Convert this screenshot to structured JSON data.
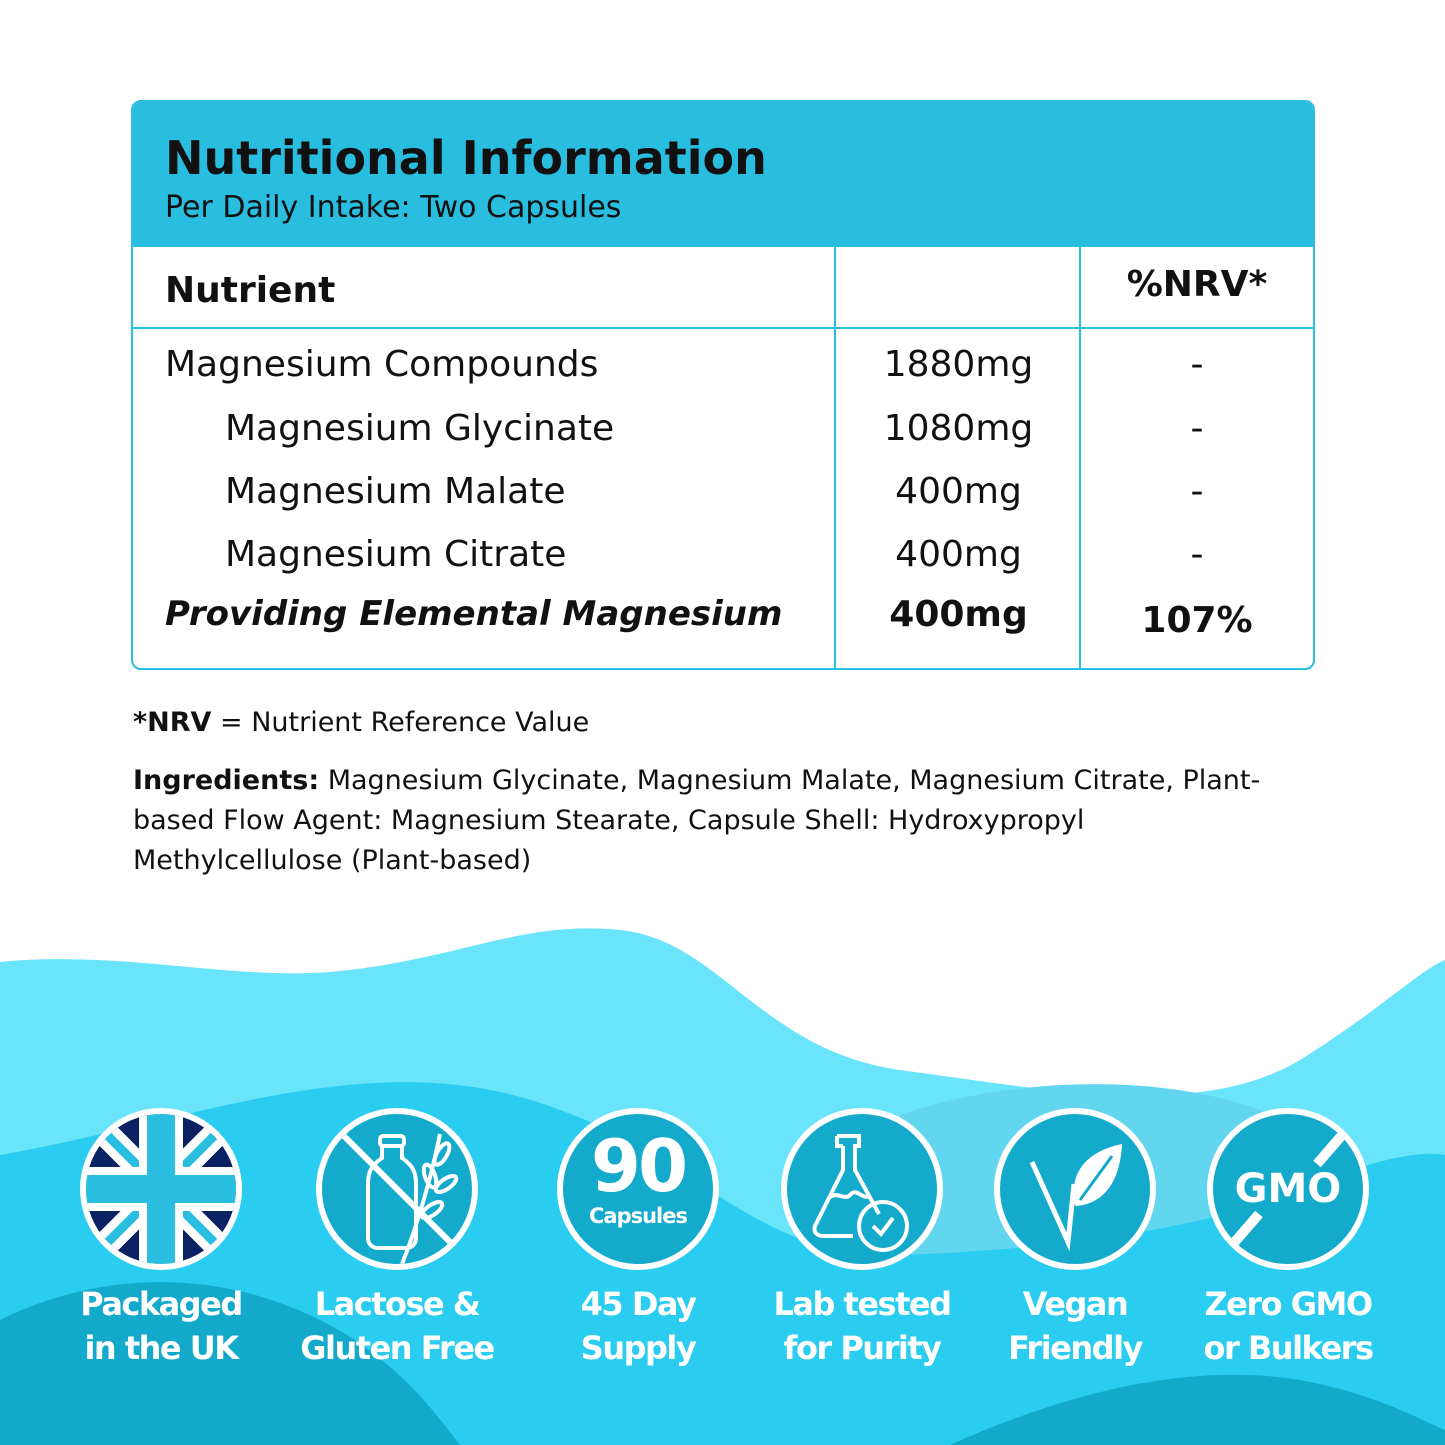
{
  "panel": {
    "title": "Nutritional Information",
    "subtitle": "Per Daily Intake: Two Capsules",
    "headers": {
      "nutrient": "Nutrient",
      "amount": "",
      "nrv": "%NRV*"
    },
    "rows": [
      {
        "name": "Magnesium Compounds",
        "amount": "1880mg",
        "nrv": "-"
      },
      {
        "name": "Magnesium Glycinate",
        "amount": "1080mg",
        "nrv": "-"
      },
      {
        "name": "Magnesium Malate",
        "amount": "400mg",
        "nrv": "-"
      },
      {
        "name": "Magnesium Citrate",
        "amount": "400mg",
        "nrv": "-"
      },
      {
        "name": "Providing Elemental Magnesium",
        "amount": "400mg",
        "nrv": "107%"
      }
    ]
  },
  "notes": {
    "nrv_abbr": "*NRV",
    "nrv_def": " = Nutrient Reference Value",
    "ingredients_label": "Ingredients:",
    "ingredients_text": " Magnesium Glycinate, Magnesium Malate, Magnesium Citrate, Plant-based Flow Agent: Magnesium Stearate, Capsule Shell: Hydroxypropyl Methylcellulose (Plant-based)"
  },
  "badges": [
    {
      "icon": "uk-flag-icon",
      "line1": "Packaged",
      "line2": "in the UK"
    },
    {
      "icon": "no-lactose-gluten-icon",
      "line1": "Lactose &",
      "line2": "Gluten Free"
    },
    {
      "icon": "capsule-count-icon",
      "count": "90",
      "count_unit": "Capsules",
      "line1": "45 Day",
      "line2": "Supply"
    },
    {
      "icon": "lab-flask-check-icon",
      "line1": "Lab tested",
      "line2": "for Purity"
    },
    {
      "icon": "vegan-leaf-icon",
      "line1": "Vegan",
      "line2": "Friendly"
    },
    {
      "icon": "no-gmo-icon",
      "gmo": "GMO",
      "line1": "Zero GMO",
      "line2": "or Bulkers"
    }
  ],
  "colors": {
    "accent": "#29bde0",
    "badge": "#13aacb",
    "wave_light": "#6ae4fb",
    "wave_mid": "#2acdef",
    "wave_dark": "#12a9cb",
    "flag_navy": "#0a2164"
  }
}
